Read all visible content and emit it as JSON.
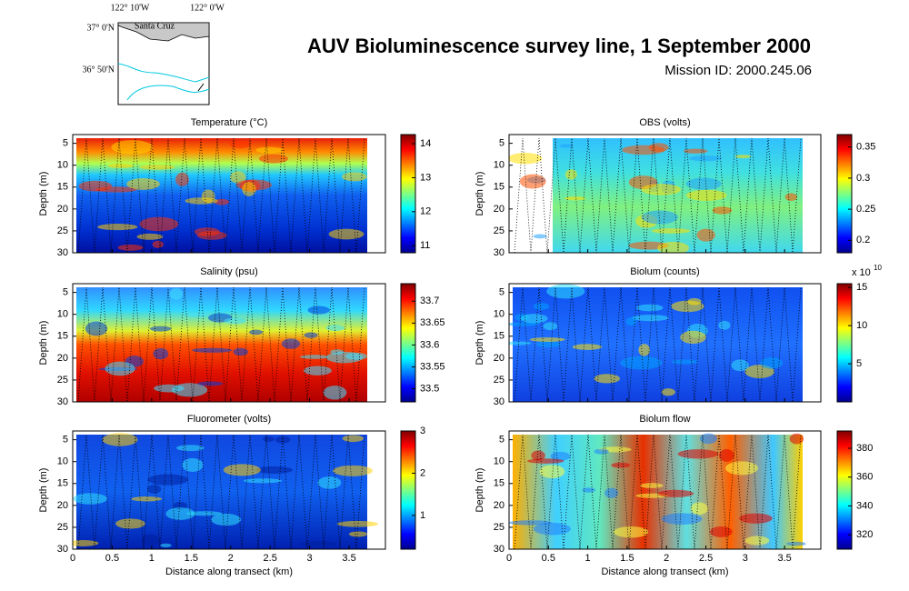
{
  "title": "AUV Bioluminescence survey line, 1 September 2000",
  "subtitle": "Mission ID: 2000.245.06",
  "inset_map": {
    "lon_labels": [
      "122° 10'W",
      "122° 0'W"
    ],
    "lat_labels": [
      "37° 0'N",
      "36° 50'N"
    ],
    "place": "Santa Cruz"
  },
  "chart_data": [
    {
      "type": "heatmap",
      "title": "Temperature (°C)",
      "ylabel": "Depth (m)",
      "xlim": [
        0,
        3.96
      ],
      "xticks": [
        0,
        0.5,
        1,
        1.5,
        2,
        2.5,
        3,
        3.5
      ],
      "ylim": [
        30,
        3
      ],
      "yticks": [
        5,
        10,
        15,
        20,
        25,
        30
      ],
      "clim": [
        10.79,
        14.27
      ],
      "cticks": [
        11,
        12,
        13,
        14
      ]
    },
    {
      "type": "heatmap",
      "title": "OBS (volts)",
      "ylabel": "Depth (m)",
      "xlim": [
        0,
        3.96
      ],
      "xticks": [
        0,
        0.5,
        1,
        1.5,
        2,
        2.5,
        3,
        3.5
      ],
      "ylim": [
        30,
        3
      ],
      "yticks": [
        5,
        10,
        15,
        20,
        25,
        30
      ],
      "clim": [
        0.18,
        0.37
      ],
      "cticks": [
        0.2,
        0.25,
        0.3,
        0.35
      ]
    },
    {
      "type": "heatmap",
      "title": "Salinity (psu)",
      "ylabel": "Depth (m)",
      "xlim": [
        0,
        3.96
      ],
      "xticks": [
        0,
        0.5,
        1,
        1.5,
        2,
        2.5,
        3,
        3.5
      ],
      "ylim": [
        30,
        3
      ],
      "yticks": [
        5,
        10,
        15,
        20,
        25,
        30
      ],
      "clim": [
        33.47,
        33.74
      ],
      "cticks": [
        33.5,
        33.55,
        33.6,
        33.65,
        33.7
      ]
    },
    {
      "type": "heatmap",
      "title": "Biolum (counts)",
      "ylabel": "Depth (m)",
      "xlim": [
        0,
        3.96
      ],
      "xticks": [
        0,
        0.5,
        1,
        1.5,
        2,
        2.5,
        3,
        3.5
      ],
      "ylim": [
        30,
        3
      ],
      "yticks": [
        5,
        10,
        15,
        20,
        25,
        30
      ],
      "clim": [
        0,
        15.5
      ],
      "cticks": [
        5,
        10,
        15
      ],
      "cscale": {
        "base": "x 10",
        "exponent": "10"
      }
    },
    {
      "type": "heatmap",
      "title": "Fluorometer (volts)",
      "ylabel": "Depth (m)",
      "xlabel": "Distance along transect (km)",
      "xlim": [
        0,
        3.96
      ],
      "xticks": [
        0,
        0.5,
        1,
        1.5,
        2,
        2.5,
        3,
        3.5
      ],
      "ylim": [
        30,
        3
      ],
      "yticks": [
        5,
        10,
        15,
        20,
        25,
        30
      ],
      "clim": [
        0.2,
        3
      ],
      "cticks": [
        1,
        2,
        3
      ]
    },
    {
      "type": "heatmap",
      "title": "Biolum flow",
      "ylabel": "Depth (m)",
      "xlabel": "Distance along transect (km)",
      "xlim": [
        0,
        3.96
      ],
      "xticks": [
        0,
        0.5,
        1,
        1.5,
        2,
        2.5,
        3,
        3.5
      ],
      "ylim": [
        30,
        3
      ],
      "yticks": [
        5,
        10,
        15,
        20,
        25,
        30
      ],
      "clim": [
        310,
        392
      ],
      "cticks": [
        320,
        340,
        360,
        380
      ]
    }
  ]
}
